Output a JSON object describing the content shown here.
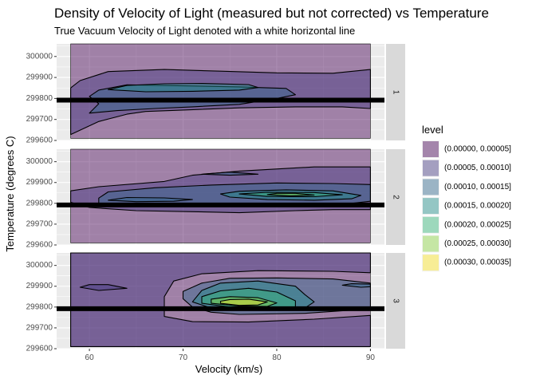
{
  "chart_data": {
    "type": "heatmap",
    "subtype": "filled density contour, faceted",
    "title": "Density of Velocity of Light (measured but not corrected) vs Temperature",
    "subtitle": "True Vacuum Velocity of Light denoted with a white horizontal line",
    "xlabel": "Velocity (km/s)",
    "ylabel": "Temperature (degrees C)",
    "xlim": [
      56.5,
      91.5
    ],
    "ylim": [
      299600,
      300060
    ],
    "x_ticks": [
      60,
      70,
      80,
      90
    ],
    "x_tick_labels": [
      "60",
      "70",
      "80",
      "90"
    ],
    "y_ticks": [
      299600,
      299700,
      299800,
      299900,
      300000
    ],
    "y_tick_labels": [
      "299600",
      "299700",
      "299800",
      "299900",
      "300000"
    ],
    "reference_line_y": 299792,
    "grid": true,
    "legend": {
      "title": "level",
      "placement": "right",
      "levels": [
        {
          "label": "(0.00000, 0.00005]",
          "color": "#440154"
        },
        {
          "label": "(0.00005, 0.00010]",
          "color": "#443A83"
        },
        {
          "label": "(0.00010, 0.00015]",
          "color": "#31688E"
        },
        {
          "label": "(0.00015, 0.00020]",
          "color": "#21908C"
        },
        {
          "label": "(0.00020, 0.00025]",
          "color": "#35B779"
        },
        {
          "label": "(0.00025, 0.00030]",
          "color": "#8FD744"
        },
        {
          "label": "(0.00030, 0.00035]",
          "color": "#FDE725"
        }
      ]
    },
    "fill_alpha": 0.45,
    "facets": [
      {
        "label": "1",
        "data_range": {
          "x": [
            58,
            90
          ],
          "y": [
            299610,
            300060
          ]
        },
        "contours": [
          {
            "level": 1,
            "points": [
              [
                58,
                299628
              ],
              [
                61,
                299690
              ],
              [
                64,
                299725
              ],
              [
                66,
                299738
              ],
              [
                70,
                299745
              ],
              [
                76,
                299755
              ],
              [
                82,
                299760
              ],
              [
                87,
                299760
              ],
              [
                90,
                299752
              ],
              [
                90,
                299938
              ],
              [
                86,
                299920
              ],
              [
                80,
                299922
              ],
              [
                74,
                299930
              ],
              [
                68,
                299938
              ],
              [
                62,
                299928
              ],
              [
                59,
                299885
              ],
              [
                58,
                299850
              ]
            ]
          },
          {
            "level": 2,
            "points": [
              [
                60,
                299730
              ],
              [
                63,
                299742
              ],
              [
                67,
                299752
              ],
              [
                71,
                299760
              ],
              [
                76,
                299772
              ],
              [
                80,
                299800
              ],
              [
                82,
                299818
              ],
              [
                81,
                299848
              ],
              [
                76,
                299855
              ],
              [
                70,
                299860
              ],
              [
                64,
                299865
              ],
              [
                61,
                299840
              ],
              [
                60,
                299810
              ],
              [
                61,
                299775
              ]
            ]
          },
          {
            "level": 3,
            "points": [
              [
                62,
                299842
              ],
              [
                64,
                299862
              ],
              [
                68,
                299870
              ],
              [
                72,
                299872
              ],
              [
                77,
                299866
              ],
              [
                78,
                299852
              ],
              [
                76,
                299840
              ],
              [
                71,
                299834
              ],
              [
                66,
                299832
              ]
            ]
          }
        ]
      },
      {
        "label": "2",
        "data_range": {
          "x": [
            58,
            90
          ],
          "y": [
            299610,
            300060
          ]
        },
        "contours": [
          {
            "level": 1,
            "points": [
              [
                58,
                299805
              ],
              [
                60,
                299780
              ],
              [
                65,
                299765
              ],
              [
                71,
                299760
              ],
              [
                76,
                299755
              ],
              [
                82,
                299765
              ],
              [
                86,
                299770
              ],
              [
                90,
                299770
              ],
              [
                90,
                299975
              ],
              [
                84,
                299975
              ],
              [
                76,
                299955
              ],
              [
                71,
                299935
              ],
              [
                68,
                299905
              ],
              [
                61,
                299880
              ],
              [
                58,
                299860
              ]
            ]
          },
          {
            "level": 2,
            "points": [
              [
                61,
                299800
              ],
              [
                66,
                299785
              ],
              [
                72,
                299790
              ],
              [
                78,
                299795
              ],
              [
                84,
                299795
              ],
              [
                88,
                299800
              ],
              [
                90,
                299810
              ],
              [
                90,
                299890
              ],
              [
                86,
                299895
              ],
              [
                80,
                299898
              ],
              [
                73,
                299888
              ],
              [
                67,
                299875
              ],
              [
                62,
                299855
              ],
              [
                61,
                299825
              ]
            ]
          },
          {
            "level": 2,
            "points": [
              [
                62,
                299815
              ],
              [
                65,
                299808
              ],
              [
                69,
                299810
              ],
              [
                71,
                299818
              ],
              [
                68,
                299826
              ],
              [
                64,
                299828
              ]
            ]
          },
          {
            "level": 2,
            "points": [
              [
                72,
                299940
              ],
              [
                75,
                299935
              ],
              [
                78,
                299940
              ],
              [
                75,
                299950
              ]
            ]
          },
          {
            "level": 3,
            "points": [
              [
                75,
                299830
              ],
              [
                79,
                299818
              ],
              [
                84,
                299815
              ],
              [
                88,
                299822
              ],
              [
                89,
                299838
              ],
              [
                86,
                299860
              ],
              [
                81,
                299865
              ],
              [
                76,
                299858
              ],
              [
                74,
                299845
              ]
            ]
          },
          {
            "level": 4,
            "points": [
              [
                76,
                299845
              ],
              [
                79,
                299833
              ],
              [
                84,
                299832
              ],
              [
                87,
                299841
              ],
              [
                84,
                299852
              ],
              [
                79,
                299853
              ]
            ]
          },
          {
            "level": 5,
            "points": [
              [
                79,
                299842
              ],
              [
                81.5,
                299836
              ],
              [
                84,
                299840
              ],
              [
                82,
                299848
              ],
              [
                80,
                299848
              ]
            ]
          }
        ]
      },
      {
        "label": "3",
        "data_range": {
          "x": [
            58,
            90
          ],
          "y": [
            299610,
            300060
          ]
        },
        "contours": [
          {
            "level": 1,
            "points": [
              [
                58,
                299610
              ],
              [
                90,
                299610
              ],
              [
                90,
                299760
              ],
              [
                84,
                299742
              ],
              [
                77,
                299728
              ],
              [
                71,
                299730
              ],
              [
                68,
                299755
              ],
              [
                68,
                299850
              ],
              [
                69,
                299925
              ],
              [
                72,
                299960
              ],
              [
                78,
                299975
              ],
              [
                86,
                299972
              ],
              [
                90,
                299965
              ],
              [
                90,
                300060
              ],
              [
                58,
                300060
              ]
            ]
          },
          {
            "level": 1,
            "points": [
              [
                59,
                299895
              ],
              [
                61,
                299880
              ],
              [
                64,
                299890
              ],
              [
                62,
                299908
              ],
              [
                60,
                299908
              ]
            ]
          },
          {
            "level": 2,
            "points": [
              [
                70,
                299840
              ],
              [
                71,
                299800
              ],
              [
                73,
                299775
              ],
              [
                76,
                299765
              ],
              [
                83,
                299770
              ],
              [
                88,
                299785
              ],
              [
                90,
                299790
              ],
              [
                90,
                299915
              ],
              [
                86,
                299935
              ],
              [
                80,
                299940
              ],
              [
                75,
                299938
              ],
              [
                72,
                299915
              ],
              [
                70,
                299875
              ]
            ]
          },
          {
            "level": 2,
            "points": [
              [
                87,
                299905
              ],
              [
                89,
                299895
              ],
              [
                90,
                299898
              ],
              [
                90,
                299910
              ],
              [
                88,
                299912
              ]
            ]
          },
          {
            "level": 3,
            "points": [
              [
                71,
                299825
              ],
              [
                73,
                299795
              ],
              [
                77,
                299785
              ],
              [
                83,
                299795
              ],
              [
                84,
                299825
              ],
              [
                83,
                299860
              ],
              [
                82,
                299900
              ],
              [
                78,
                299925
              ],
              [
                74,
                299915
              ],
              [
                72,
                299880
              ]
            ]
          },
          {
            "level": 4,
            "points": [
              [
                72,
                299818
              ],
              [
                75,
                299800
              ],
              [
                79,
                299795
              ],
              [
                82,
                299800
              ],
              [
                82,
                299830
              ],
              [
                80,
                299872
              ],
              [
                77,
                299890
              ],
              [
                74,
                299878
              ],
              [
                72,
                299850
              ]
            ]
          },
          {
            "level": 5,
            "points": [
              [
                73,
                299818
              ],
              [
                76,
                299805
              ],
              [
                79,
                299803
              ],
              [
                80,
                299820
              ],
              [
                78,
                299845
              ],
              [
                75,
                299850
              ],
              [
                73,
                299838
              ]
            ]
          },
          {
            "level": 6,
            "points": [
              [
                74,
                299818
              ],
              [
                76,
                299808
              ],
              [
                78,
                299810
              ],
              [
                79,
                299825
              ],
              [
                77,
                299838
              ],
              [
                75,
                299836
              ],
              [
                74,
                299828
              ]
            ]
          }
        ]
      }
    ]
  }
}
